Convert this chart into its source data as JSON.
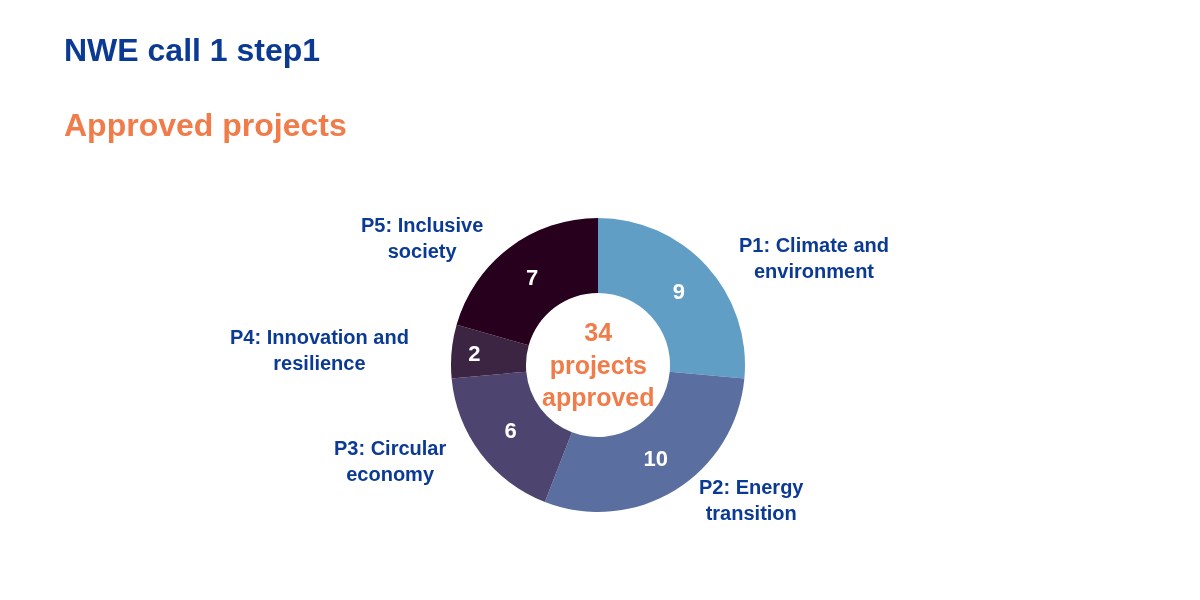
{
  "chart_data": {
    "type": "donut",
    "title": "NWE call 1 step1",
    "subtitle": "Approved projects",
    "categories": [
      "P1: Climate and environment",
      "P2: Energy transition",
      "P3: Circular economy",
      "P4: Innovation and resilience",
      "P5: Inclusive society"
    ],
    "values": [
      9,
      10,
      6,
      2,
      7
    ],
    "colors": [
      "#619ec6",
      "#5a6f9f",
      "#4d4470",
      "#3c2542",
      "#27001e"
    ],
    "data_labels": true,
    "legend": false,
    "annotations": [
      "34 projects approved"
    ]
  }
}
